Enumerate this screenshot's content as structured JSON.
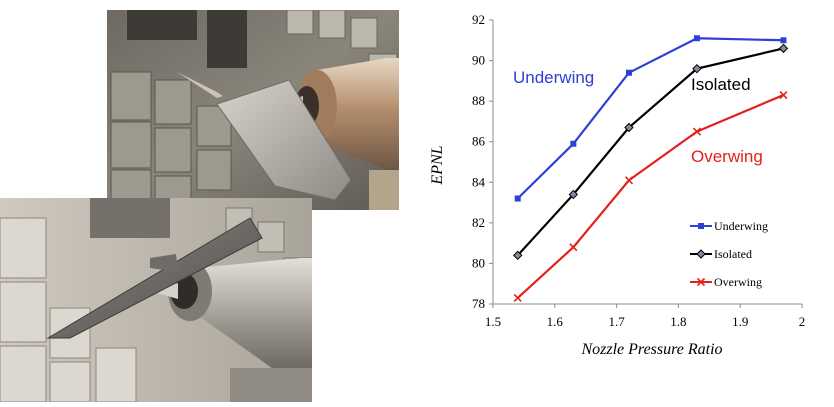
{
  "photos": [
    {
      "name": "underwing-nozzle-test-photo"
    },
    {
      "name": "overwing-nozzle-test-photo"
    }
  ],
  "chart_data": {
    "type": "line",
    "title": "",
    "xlabel": "Nozzle Pressure Ratio",
    "ylabel": "EPNL",
    "xlim": [
      1.5,
      2
    ],
    "ylim": [
      78,
      92
    ],
    "x_ticks": [
      "1.5",
      "1.6",
      "1.7",
      "1.8",
      "1.9",
      "2"
    ],
    "y_ticks": [
      "78",
      "80",
      "82",
      "84",
      "86",
      "88",
      "90",
      "92"
    ],
    "grid": false,
    "legend_position": "bottom-right",
    "series": [
      {
        "name": "Underwing",
        "label": "Underwing",
        "color": "#2e3fd6",
        "marker": "square",
        "x": [
          1.54,
          1.63,
          1.72,
          1.83,
          1.97
        ],
        "y": [
          83.2,
          85.9,
          89.4,
          91.1,
          91.0
        ]
      },
      {
        "name": "Isolated",
        "label": "Isolated",
        "color": "#000000",
        "marker": "diamond",
        "x": [
          1.54,
          1.63,
          1.72,
          1.83,
          1.97
        ],
        "y": [
          80.4,
          83.4,
          86.7,
          89.6,
          90.6
        ]
      },
      {
        "name": "Overwing",
        "label": "Overwing",
        "color": "#e3211c",
        "marker": "cross",
        "x": [
          1.54,
          1.63,
          1.72,
          1.83,
          1.97
        ],
        "y": [
          78.3,
          80.8,
          84.1,
          86.5,
          88.3
        ]
      }
    ]
  }
}
